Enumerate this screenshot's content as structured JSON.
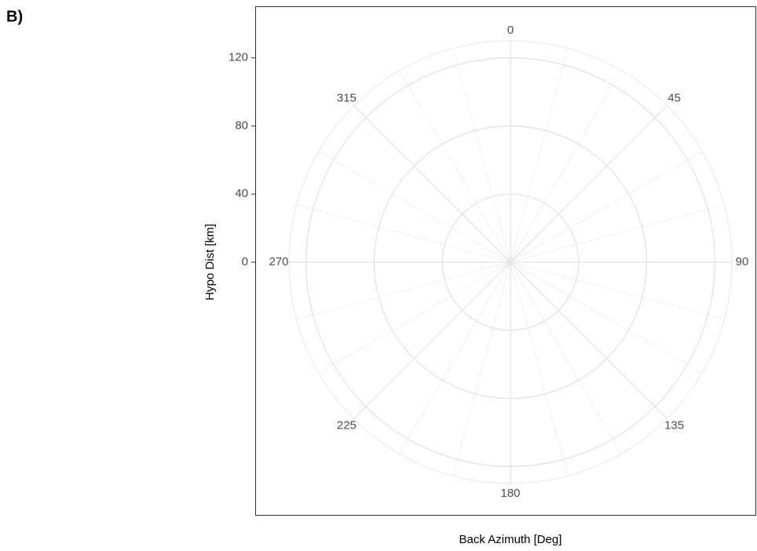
{
  "chart_data": {
    "type": "polar",
    "tag": "B)",
    "x_label": "Back Azimuth [Deg]",
    "y_label": "Hypo Dist [km]",
    "xlim": [
      0,
      360
    ],
    "xticks": [
      0,
      45,
      90,
      135,
      180,
      225,
      270,
      315
    ],
    "ylim": [
      0,
      130
    ],
    "yticks": [
      0,
      40,
      80,
      120
    ],
    "grid": true,
    "series": []
  }
}
